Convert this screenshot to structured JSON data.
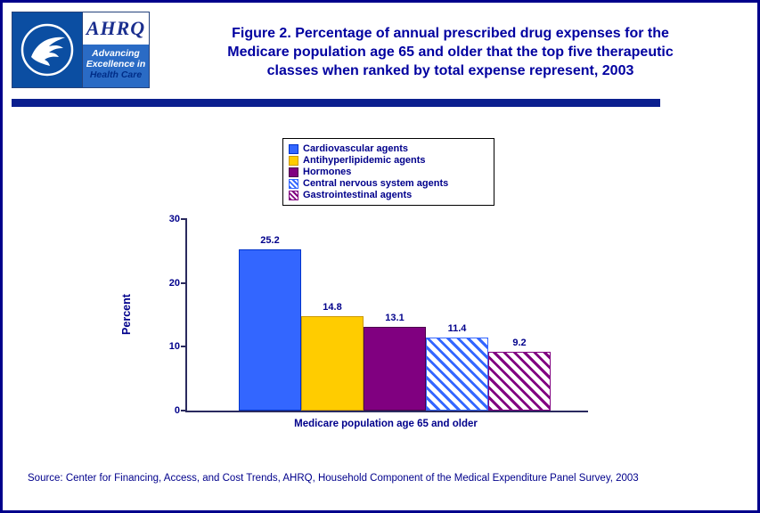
{
  "header": {
    "title_line1": "Figure 2. Percentage of annual prescribed drug expenses for the",
    "title_line2": "Medicare population age 65 and older that the top five therapeutic",
    "title_line3": "classes when ranked by total expense represent, 2003",
    "logo": {
      "ahrq_text": "AHRQ",
      "tagline_line1": "Advancing",
      "tagline_line2": "Excellence in",
      "tagline_line3": "Health Care"
    }
  },
  "chart_data": {
    "type": "bar",
    "categories": [
      "Cardiovascular agents",
      "Antihyperlipidemic agents",
      "Hormones",
      "Central nervous system agents",
      "Gastrointestinal agents"
    ],
    "values": [
      25.2,
      14.8,
      13.1,
      11.4,
      9.2
    ],
    "value_labels": [
      "25.2",
      "14.8",
      "13.1",
      "11.4",
      "9.2"
    ],
    "title": "",
    "xlabel": "Medicare population age 65 and older",
    "ylabel": "Percent",
    "ylim": [
      0,
      30
    ],
    "yticks": [
      0,
      10,
      20,
      30
    ],
    "grid": false,
    "legend_position": "top-center",
    "series_styles": [
      {
        "fill": "#3366FF",
        "border": "#0033CC",
        "pattern": "solid"
      },
      {
        "fill": "#FFCC00",
        "border": "#CC9900",
        "pattern": "solid"
      },
      {
        "fill": "#800080",
        "border": "#4B004B",
        "pattern": "solid"
      },
      {
        "fill": "#3366FF",
        "border": "#3366FF",
        "pattern": "diagonal"
      },
      {
        "fill": "#800080",
        "border": "#800080",
        "pattern": "diagonal"
      }
    ]
  },
  "colors": {
    "navy_text": "#00008B",
    "title_text": "#0000A0",
    "rule": "#0B1F8F"
  },
  "source": "Source: Center for Financing, Access, and Cost Trends, AHRQ, Household Component of the Medical Expenditure Panel Survey, 2003"
}
